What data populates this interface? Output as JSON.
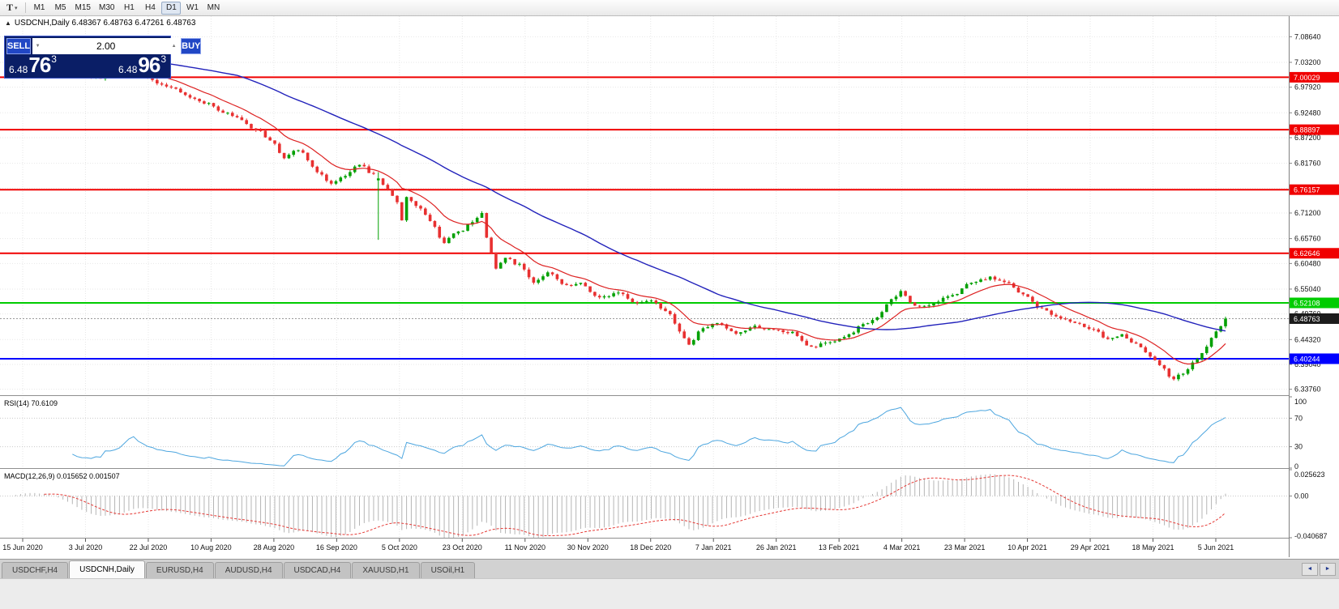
{
  "toolbar": {
    "tool_label": "T",
    "timeframes": [
      "M1",
      "M5",
      "M15",
      "M30",
      "H1",
      "H4",
      "D1",
      "W1",
      "MN"
    ],
    "active_timeframe": "D1"
  },
  "icons": {
    "one_click_toggle": "▲",
    "tool_caret": "▾",
    "vol_down": "▼",
    "vol_up": "▲",
    "tabs_left": "◄",
    "tabs_right": "►"
  },
  "chart": {
    "header": "USDCNH,Daily 6.48367 6.48763 6.47261 6.48763",
    "symbol": "USDCNH",
    "period": "Daily",
    "ohlc": {
      "open": "6.48367",
      "high": "6.48763",
      "low": "6.47261",
      "close": "6.48763"
    }
  },
  "one_click": {
    "sell_label": "SELL",
    "buy_label": "BUY",
    "volume": "2.00",
    "sell_price": {
      "prefix": "6.48",
      "big": "76",
      "sup": "3"
    },
    "buy_price": {
      "prefix": "6.48",
      "big": "96",
      "sup": "3"
    }
  },
  "indicators": {
    "rsi_label": "RSI(14) 70.6109",
    "macd_label": "MACD(12,26,9) 0.015652 0.001507"
  },
  "tabs": {
    "items": [
      "USDCHF,H4",
      "USDCNH,Daily",
      "EURUSD,H4",
      "AUDUSD,H4",
      "USDCAD,H4",
      "XAUUSD,H1",
      "USOil,H1"
    ],
    "active": "USDCNH,Daily"
  },
  "chart_data": {
    "type": "candlestick",
    "symbol": "USDCNH",
    "timeframe": "Daily",
    "candles": 260,
    "price_range": {
      "top": 7.13,
      "bottom": 6.325
    },
    "y_ticks": [
      {
        "v": 7.0864,
        "label": "7.08640"
      },
      {
        "v": 7.032,
        "label": "7.03200"
      },
      {
        "v": 6.9792,
        "label": "6.97920"
      },
      {
        "v": 6.9248,
        "label": "6.92480"
      },
      {
        "v": 6.872,
        "label": "6.87200"
      },
      {
        "v": 6.8176,
        "label": "6.81760"
      },
      {
        "v": 6.7648,
        "label": "6.76480"
      },
      {
        "v": 6.712,
        "label": "6.71200"
      },
      {
        "v": 6.6576,
        "label": "6.65760"
      },
      {
        "v": 6.6048,
        "label": "6.60480"
      },
      {
        "v": 6.5504,
        "label": "6.55040"
      },
      {
        "v": 6.4976,
        "label": "6.49760"
      },
      {
        "v": 6.4432,
        "label": "6.44320"
      },
      {
        "v": 6.3904,
        "label": "6.39040"
      },
      {
        "v": 6.3376,
        "label": "6.33760"
      }
    ],
    "x_labels": [
      "15 Jun 2020",
      "3 Jul 2020",
      "22 Jul 2020",
      "10 Aug 2020",
      "28 Aug 2020",
      "16 Sep 2020",
      "5 Oct 2020",
      "23 Oct 2020",
      "11 Nov 2020",
      "30 Nov 2020",
      "18 Dec 2020",
      "7 Jan 2021",
      "26 Jan 2021",
      "13 Feb 2021",
      "4 Mar 2021",
      "23 Mar 2021",
      "10 Apr 2021",
      "29 Apr 2021",
      "18 May 2021",
      "5 Jun 2021"
    ],
    "h_lines": [
      {
        "v": 7.00029,
        "label": "7.00029",
        "color": "#f00000"
      },
      {
        "v": 6.88897,
        "label": "6.88897",
        "color": "#f00000"
      },
      {
        "v": 6.76157,
        "label": "6.76157",
        "color": "#f00000"
      },
      {
        "v": 6.62646,
        "label": "6.62646",
        "color": "#f00000"
      },
      {
        "v": 6.52108,
        "label": "6.52108",
        "color": "#00cc00"
      },
      {
        "v": 6.40244,
        "label": "6.40244",
        "color": "#0000ff"
      }
    ],
    "bid": {
      "v": 6.48763,
      "label": "6.48763"
    },
    "up_color": "#00a000",
    "down_color": "#e83030",
    "overlays": [
      {
        "name": "MA fast",
        "type": "EMA",
        "period": 12,
        "color": "#dd2222"
      },
      {
        "name": "MA slow",
        "type": "SMA",
        "period": 50,
        "color": "#2222bb"
      }
    ],
    "rsi": {
      "period": 14,
      "value": 70.6109,
      "color": "#4da6df",
      "levels": [
        {
          "v": 100,
          "label": "100"
        },
        {
          "v": 70,
          "label": "70"
        },
        {
          "v": 30,
          "label": "30"
        },
        {
          "v": 0,
          "label": "0"
        }
      ]
    },
    "macd": {
      "fast": 12,
      "slow": 26,
      "signal": 9,
      "value": 0.015652,
      "signal_value": 0.001507,
      "hist_color": "#b5b5b5",
      "signal_color": "#e53935",
      "range": [
        {
          "v": 0.025623,
          "label": "0.025623"
        },
        {
          "v": 0,
          "label": "0.00"
        },
        {
          "v": -0.040687,
          "label": "-0.040687"
        }
      ]
    },
    "close_path": [
      [
        0,
        7.072
      ],
      [
        4,
        7.083
      ],
      [
        9,
        7.069
      ],
      [
        13,
        7.035
      ],
      [
        16,
        7.005
      ],
      [
        19,
        6.997
      ],
      [
        23,
        7.008
      ],
      [
        27,
        7.022
      ],
      [
        30,
        6.998
      ],
      [
        33,
        6.982
      ],
      [
        36,
        6.974
      ],
      [
        40,
        6.955
      ],
      [
        43,
        6.944
      ],
      [
        46,
        6.925
      ],
      [
        49,
        6.914
      ],
      [
        53,
        6.89
      ],
      [
        56,
        6.868
      ],
      [
        59,
        6.831
      ],
      [
        62,
        6.845
      ],
      [
        66,
        6.801
      ],
      [
        69,
        6.772
      ],
      [
        72,
        6.79
      ],
      [
        75,
        6.814
      ],
      [
        78,
        6.795
      ],
      [
        81,
        6.762
      ],
      [
        83,
        6.732
      ],
      [
        84,
        6.696
      ],
      [
        85,
        6.744
      ],
      [
        88,
        6.72
      ],
      [
        90,
        6.696
      ],
      [
        93,
        6.651
      ],
      [
        96,
        6.672
      ],
      [
        99,
        6.692
      ],
      [
        101,
        6.709
      ],
      [
        102,
        6.661
      ],
      [
        103,
        6.625
      ],
      [
        104,
        6.593
      ],
      [
        106,
        6.616
      ],
      [
        109,
        6.601
      ],
      [
        112,
        6.566
      ],
      [
        115,
        6.584
      ],
      [
        119,
        6.556
      ],
      [
        122,
        6.561
      ],
      [
        126,
        6.531
      ],
      [
        130,
        6.543
      ],
      [
        134,
        6.521
      ],
      [
        137,
        6.529
      ],
      [
        140,
        6.506
      ],
      [
        143,
        6.463
      ],
      [
        145,
        6.433
      ],
      [
        148,
        6.468
      ],
      [
        151,
        6.477
      ],
      [
        155,
        6.456
      ],
      [
        159,
        6.471
      ],
      [
        163,
        6.462
      ],
      [
        167,
        6.457
      ],
      [
        171,
        6.426
      ],
      [
        175,
        6.438
      ],
      [
        179,
        6.452
      ],
      [
        182,
        6.474
      ],
      [
        185,
        6.489
      ],
      [
        188,
        6.528
      ],
      [
        190,
        6.545
      ],
      [
        193,
        6.513
      ],
      [
        197,
        6.519
      ],
      [
        201,
        6.539
      ],
      [
        205,
        6.562
      ],
      [
        209,
        6.574
      ],
      [
        212,
        6.566
      ],
      [
        216,
        6.538
      ],
      [
        220,
        6.508
      ],
      [
        224,
        6.488
      ],
      [
        228,
        6.474
      ],
      [
        231,
        6.466
      ],
      [
        234,
        6.442
      ],
      [
        237,
        6.452
      ],
      [
        240,
        6.432
      ],
      [
        243,
        6.408
      ],
      [
        245,
        6.386
      ],
      [
        248,
        6.361
      ],
      [
        250,
        6.373
      ],
      [
        252,
        6.392
      ],
      [
        254,
        6.414
      ],
      [
        256,
        6.445
      ],
      [
        257,
        6.459
      ],
      [
        258,
        6.474
      ],
      [
        259,
        6.48763
      ]
    ],
    "wick_spikes": [
      [
        79,
        6.655
      ]
    ]
  }
}
